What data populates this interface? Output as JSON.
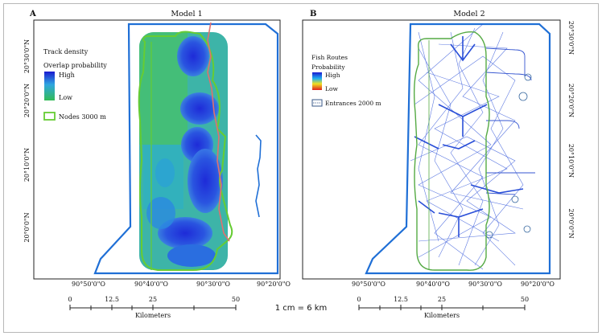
{
  "panel_a": {
    "letter": "A",
    "title": "Model 1",
    "left_lat_labels": [
      "20°30'0\"N",
      "20°20'0\"N",
      "20°10'0\"N",
      "20°0'0\"N"
    ],
    "lon_labels": [
      "90°50'0\"O",
      "90°40'0\"O",
      "90°30'0\"O",
      "90°20'0\"O"
    ],
    "legend": {
      "title1": "Track density",
      "title2": "Overlap probability",
      "high": "High",
      "low": "Low",
      "nodes": "Nodes 3000 m"
    },
    "scale": {
      "ticks": [
        "0",
        "12.5",
        "25",
        "50"
      ],
      "unit": "Kilometers"
    }
  },
  "panel_b": {
    "letter": "B",
    "title": "Model 2",
    "right_lat_labels": [
      "20°30'0\"N",
      "20°20'0\"N",
      "20°10'0\"N",
      "20°0'0\"N"
    ],
    "lon_labels": [
      "90°50'0\"O",
      "90°40'0\"O",
      "90°30'0\"O",
      "90°20'0\"O"
    ],
    "legend": {
      "title1": "Fish Routes",
      "title2": "Probability",
      "high": "High",
      "low": "Low",
      "entrances": "Entrances 2000 m"
    },
    "scale": {
      "ticks": [
        "0",
        "12.5",
        "25",
        "50"
      ],
      "unit": "Kilometers"
    }
  },
  "scale_ratio": "1 cm = 6 km",
  "colors": {
    "boundary": "#1f6fd6",
    "nodes": "#66cc33",
    "coast": "#e07070",
    "high": "#1a1ad0",
    "low": "#33bb55",
    "routes": "#2a4fd8"
  }
}
